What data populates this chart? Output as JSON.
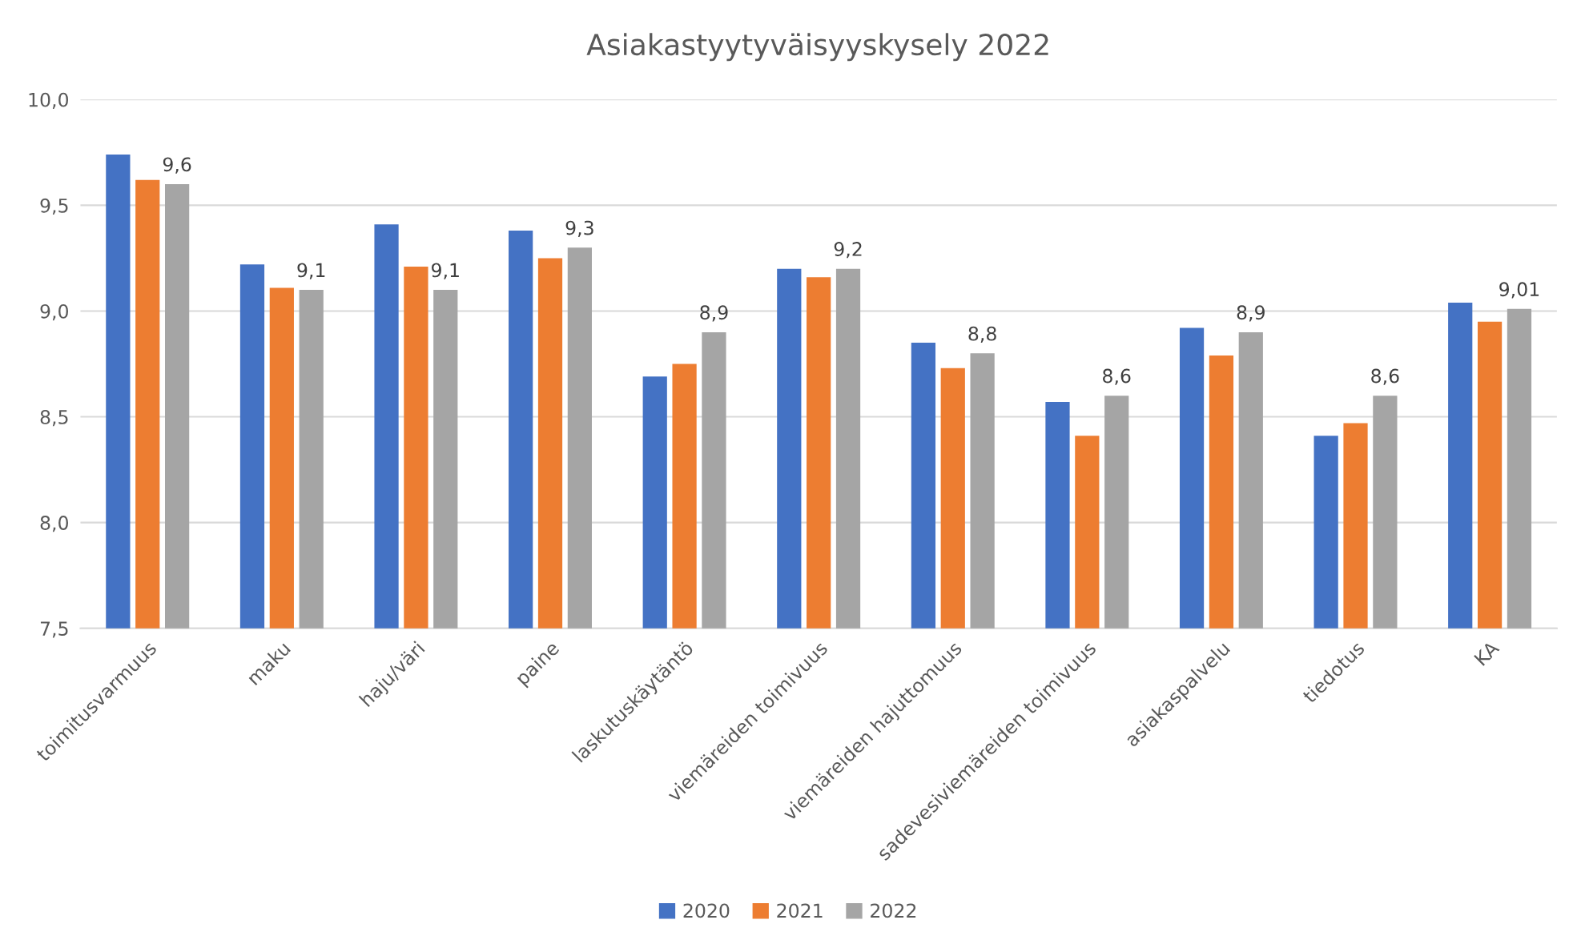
{
  "chart_data": {
    "type": "bar",
    "title": "Asiakastyytyväisyyskysely 2022",
    "categories": [
      "toimitusvarmuus",
      "maku",
      "haju/väri",
      "paine",
      "laskutuskäytäntö",
      "viemäreiden toimivuus",
      "viemäreiden hajuttomuus",
      "sadevesiviemäreiden toimivuus",
      "asiakaspalvelu",
      "tiedotus",
      "KA"
    ],
    "series": [
      {
        "name": "2020",
        "color": "#4472c4",
        "values": [
          9.74,
          9.22,
          9.41,
          9.38,
          8.69,
          9.2,
          8.85,
          8.57,
          8.92,
          8.41,
          9.04
        ]
      },
      {
        "name": "2021",
        "color": "#ed7d31",
        "values": [
          9.62,
          9.11,
          9.21,
          9.25,
          8.75,
          9.16,
          8.73,
          8.41,
          8.79,
          8.47,
          8.95
        ]
      },
      {
        "name": "2022",
        "color": "#a5a5a5",
        "values": [
          9.6,
          9.1,
          9.1,
          9.3,
          8.9,
          9.2,
          8.8,
          8.6,
          8.9,
          8.6,
          9.01
        ],
        "value_labels": [
          "9,6",
          "9,1",
          "9,1",
          "9,3",
          "8,9",
          "9,2",
          "8,8",
          "8,6",
          "8,9",
          "8,6",
          "9,01"
        ]
      }
    ],
    "ylim": [
      7.5,
      10.0
    ],
    "yticks": [
      {
        "value": 7.5,
        "label": "7,5"
      },
      {
        "value": 8.0,
        "label": "8,0"
      },
      {
        "value": 8.5,
        "label": "8,5"
      },
      {
        "value": 9.0,
        "label": "9,0"
      },
      {
        "value": 9.5,
        "label": "9,5"
      },
      {
        "value": 10.0,
        "label": "10,0"
      }
    ],
    "grid": "y",
    "legend": "bottom"
  }
}
